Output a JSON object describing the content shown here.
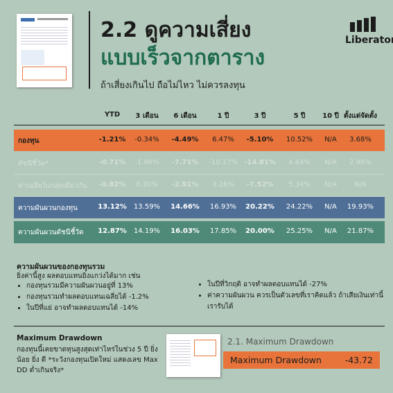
{
  "header": {
    "title_line1": "2.2 ดูความเสี่ยง",
    "title_line2": "แบบเร็วจากตาราง",
    "subtitle": "ถ้าเสี่ยงเกินไป  ถือไม่ไหว ไม่ควรลงทุน",
    "logo": "Liberator"
  },
  "table": {
    "columns": [
      "YTD",
      "3 เดือน",
      "6 เดือน",
      "1 ปี",
      "3 ปี",
      "5 ปี",
      "10 ปี",
      "ตั้งแต่จัดตั้ง"
    ],
    "rows": [
      {
        "label": "กองทุน",
        "cells": [
          "-1.21%",
          "-0.34%",
          "-4.49%",
          "6.47%",
          "-5.10%",
          "10.52%",
          "N/A",
          "3.68%"
        ]
      },
      {
        "label": "ดัชนีชี้วัด*",
        "cells": [
          "-0.71%",
          "-1.96%",
          "-7.71%",
          "-10.17%",
          "-14.81%",
          "4.64%",
          "N/A",
          "2.96%"
        ]
      },
      {
        "label": "ค่าเฉลี่ยในกลุ่มเดียวกัน",
        "cells": [
          "-0.82%",
          "0.30%",
          "-2.91%",
          "3.26%",
          "-7.52%",
          "5.34%",
          "N/A",
          "N/A"
        ]
      },
      {
        "label": "ความผันผวนกองทุน",
        "cells": [
          "13.12%",
          "13.59%",
          "14.66%",
          "16.93%",
          "20.22%",
          "24.22%",
          "N/A",
          "19.93%"
        ]
      },
      {
        "label": "ความผันผวนดัชนีชี้วัด",
        "cells": [
          "12.87%",
          "14.19%",
          "16.03%",
          "17.85%",
          "20.00%",
          "25.25%",
          "N/A",
          "21.87%"
        ]
      }
    ]
  },
  "volatility": {
    "heading": "ความผันผวนของกองทุนรวม",
    "intro": "ยิ่งค่านี้สูง ผลตอบแทนยิ่งแกว่งได้มาก เช่น",
    "bullets_left": [
      "กองทุนรวมมีความผันผวนอยู่ที่ 13%",
      "กองทุนรวมทำผลตอบแทนเฉลี่ยได้ -1.2%",
      "ในปีที่แย่ อาจทำผลตอบแทนได้ -14%"
    ],
    "bullets_right": [
      "ในปีที่วิกฤติ อาจทำผลตอบแทนได้ -27%",
      "ค่าความผันผวน ควรเป็นตัวเลขที่เราคิดแล้ว ถ้าเสียเงินเท่านี้ เรารับได้"
    ]
  },
  "drawdown": {
    "heading": "Maximum Drawdown",
    "body": "กองทุนนี้เคยขาดทุนสูงสุดเท่าไหร่ในช่วง 5 ปี ยิ่ง น้อย ยิ่ง ดี *ระวังกองทุนเปิดใหม่ แสดงเลข Max DD ต่ำเกินจริง*",
    "ref_title": "2.1. Maximum Drawdown",
    "box_label": "Maximum Drawdown",
    "box_value": "-43.72"
  }
}
